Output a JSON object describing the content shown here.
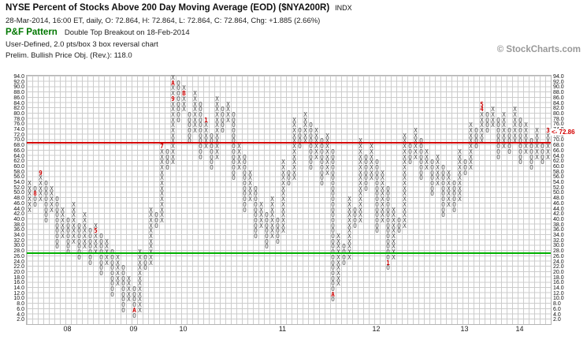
{
  "header": {
    "title": "NYSE Percent of Stocks Above 200 Day Moving Average (EOD) ($NYA200R)",
    "exchange": "INDX",
    "quote_line": "28-Mar-2014, 16:00 ET, daily, O: 72.864, H: 72.864, L: 72.864, C: 72.864, Chg: +1.885 (2.66%)",
    "pattern_label": "P&F Pattern",
    "pattern_value": "Double Top Breakout on 18-Feb-2014",
    "settings_line": "User-Defined, 2.0 pts/box 3 box reversal chart",
    "objective_line": "Prelim. Bullish Price Obj. (Rev.): 118.0",
    "watermark": "© StockCharts.com"
  },
  "colors": {
    "xo_glyph": "#4d4d4d",
    "month_marker": "#cc0000",
    "resistance_line": "#d40000",
    "support_line": "#00b000",
    "pattern_green": "#007700",
    "grid": "#cccccc"
  },
  "chart_data": {
    "type": "point-and-figure",
    "title": "NYSE Percent of Stocks Above 200 Day Moving Average (EOD) ($NYA200R)",
    "box_size": 2.0,
    "reversal": 3,
    "y_min": 2.0,
    "y_max": 94.0,
    "grid": true,
    "last_price": 72.86,
    "last_price_label": "<- 72.86",
    "resistance_line": {
      "price": 69,
      "color": "#d40000"
    },
    "support_line": {
      "price": 27,
      "color": "#00b000"
    },
    "y_ticks": [
      94,
      92,
      90,
      88,
      86,
      84,
      82,
      80,
      78,
      76,
      74,
      72,
      70,
      68,
      66,
      64,
      62,
      60,
      58,
      56,
      54,
      52,
      50,
      48,
      46,
      44,
      42,
      40,
      38,
      36,
      34,
      32,
      30,
      28,
      26,
      24,
      22,
      20,
      18,
      16,
      14,
      12,
      10,
      8,
      6,
      4,
      2
    ],
    "year_labels": [
      {
        "label": "08",
        "col": 7
      },
      {
        "label": "09",
        "col": 19
      },
      {
        "label": "10",
        "col": 28
      },
      {
        "label": "11",
        "col": 46
      },
      {
        "label": "12",
        "col": 63
      },
      {
        "label": "13",
        "col": 79
      },
      {
        "label": "14",
        "col": 89
      }
    ],
    "columns": [
      {
        "t": "X",
        "lo": 44,
        "hi": 54
      },
      {
        "t": "O",
        "lo": 46,
        "hi": 52,
        "m": [
          [
            50,
            "8"
          ]
        ]
      },
      {
        "t": "X",
        "lo": 48,
        "hi": 58,
        "m": [
          [
            58,
            "9"
          ]
        ]
      },
      {
        "t": "O",
        "lo": 40,
        "hi": 54
      },
      {
        "t": "X",
        "lo": 44,
        "hi": 52
      },
      {
        "t": "O",
        "lo": 30,
        "hi": 48
      },
      {
        "t": "X",
        "lo": 34,
        "hi": 44
      },
      {
        "t": "O",
        "lo": 28,
        "hi": 40
      },
      {
        "t": "X",
        "lo": 32,
        "hi": 46
      },
      {
        "t": "O",
        "lo": 26,
        "hi": 38
      },
      {
        "t": "X",
        "lo": 30,
        "hi": 42
      },
      {
        "t": "O",
        "lo": 24,
        "hi": 36
      },
      {
        "t": "X",
        "lo": 28,
        "hi": 38,
        "m": [
          [
            36,
            "5"
          ]
        ]
      },
      {
        "t": "O",
        "lo": 20,
        "hi": 34
      },
      {
        "t": "X",
        "lo": 24,
        "hi": 32
      },
      {
        "t": "O",
        "lo": 12,
        "hi": 28
      },
      {
        "t": "X",
        "lo": 16,
        "hi": 26
      },
      {
        "t": "O",
        "lo": 6,
        "hi": 22
      },
      {
        "t": "X",
        "lo": 10,
        "hi": 18
      },
      {
        "t": "O",
        "lo": 4,
        "hi": 14,
        "m": [
          [
            6,
            "A"
          ]
        ]
      },
      {
        "t": "X",
        "lo": 6,
        "hi": 28
      },
      {
        "t": "O",
        "lo": 22,
        "hi": 26
      },
      {
        "t": "X",
        "lo": 24,
        "hi": 44
      },
      {
        "t": "O",
        "lo": 38,
        "hi": 42
      },
      {
        "t": "X",
        "lo": 40,
        "hi": 68,
        "m": [
          [
            68,
            "7"
          ]
        ]
      },
      {
        "t": "O",
        "lo": 60,
        "hi": 66
      },
      {
        "t": "X",
        "lo": 62,
        "hi": 94,
        "m": [
          [
            86,
            "9"
          ],
          [
            92,
            "A"
          ]
        ]
      },
      {
        "t": "O",
        "lo": 78,
        "hi": 92
      },
      {
        "t": "X",
        "lo": 82,
        "hi": 90,
        "m": [
          [
            88,
            "B"
          ]
        ]
      },
      {
        "t": "O",
        "lo": 70,
        "hi": 80
      },
      {
        "t": "X",
        "lo": 74,
        "hi": 88
      },
      {
        "t": "O",
        "lo": 64,
        "hi": 84
      },
      {
        "t": "X",
        "lo": 68,
        "hi": 78,
        "m": [
          [
            78,
            "1"
          ]
        ]
      },
      {
        "t": "O",
        "lo": 60,
        "hi": 72
      },
      {
        "t": "X",
        "lo": 64,
        "hi": 86
      },
      {
        "t": "O",
        "lo": 74,
        "hi": 82
      },
      {
        "t": "X",
        "lo": 78,
        "hi": 84
      },
      {
        "t": "O",
        "lo": 56,
        "hi": 80
      },
      {
        "t": "X",
        "lo": 60,
        "hi": 68
      },
      {
        "t": "O",
        "lo": 44,
        "hi": 64
      },
      {
        "t": "X",
        "lo": 48,
        "hi": 58
      },
      {
        "t": "O",
        "lo": 34,
        "hi": 52
      },
      {
        "t": "X",
        "lo": 38,
        "hi": 46
      },
      {
        "t": "O",
        "lo": 30,
        "hi": 42
      },
      {
        "t": "X",
        "lo": 34,
        "hi": 48
      },
      {
        "t": "O",
        "lo": 32,
        "hi": 40
      },
      {
        "t": "X",
        "lo": 36,
        "hi": 62
      },
      {
        "t": "O",
        "lo": 54,
        "hi": 58
      },
      {
        "t": "X",
        "lo": 56,
        "hi": 78
      },
      {
        "t": "O",
        "lo": 68,
        "hi": 74
      },
      {
        "t": "X",
        "lo": 70,
        "hi": 80
      },
      {
        "t": "O",
        "lo": 60,
        "hi": 76
      },
      {
        "t": "X",
        "lo": 64,
        "hi": 74
      },
      {
        "t": "O",
        "lo": 54,
        "hi": 70
      },
      {
        "t": "X",
        "lo": 58,
        "hi": 72
      },
      {
        "t": "O",
        "lo": 10,
        "hi": 66,
        "m": [
          [
            12,
            "A"
          ]
        ]
      },
      {
        "t": "X",
        "lo": 16,
        "hi": 34
      },
      {
        "t": "O",
        "lo": 24,
        "hi": 30
      },
      {
        "t": "X",
        "lo": 26,
        "hi": 48
      },
      {
        "t": "O",
        "lo": 38,
        "hi": 44
      },
      {
        "t": "X",
        "lo": 40,
        "hi": 70
      },
      {
        "t": "O",
        "lo": 52,
        "hi": 64
      },
      {
        "t": "X",
        "lo": 56,
        "hi": 68
      },
      {
        "t": "O",
        "lo": 36,
        "hi": 62
      },
      {
        "t": "X",
        "lo": 40,
        "hi": 58
      },
      {
        "t": "O",
        "lo": 22,
        "hi": 52,
        "m": [
          [
            24,
            "1"
          ]
        ]
      },
      {
        "t": "X",
        "lo": 26,
        "hi": 44
      },
      {
        "t": "O",
        "lo": 36,
        "hi": 40
      },
      {
        "t": "X",
        "lo": 38,
        "hi": 72
      },
      {
        "t": "O",
        "lo": 62,
        "hi": 68
      },
      {
        "t": "X",
        "lo": 64,
        "hi": 74
      },
      {
        "t": "O",
        "lo": 56,
        "hi": 70
      },
      {
        "t": "X",
        "lo": 60,
        "hi": 66
      },
      {
        "t": "O",
        "lo": 50,
        "hi": 62
      },
      {
        "t": "X",
        "lo": 54,
        "hi": 64
      },
      {
        "t": "O",
        "lo": 42,
        "hi": 60
      },
      {
        "t": "X",
        "lo": 46,
        "hi": 58
      },
      {
        "t": "O",
        "lo": 44,
        "hi": 54
      },
      {
        "t": "X",
        "lo": 48,
        "hi": 66
      },
      {
        "t": "O",
        "lo": 58,
        "hi": 62
      },
      {
        "t": "X",
        "lo": 60,
        "hi": 76
      },
      {
        "t": "O",
        "lo": 68,
        "hi": 74
      },
      {
        "t": "X",
        "lo": 70,
        "hi": 84,
        "m": [
          [
            84,
            "5"
          ],
          [
            82,
            "4"
          ]
        ]
      },
      {
        "t": "O",
        "lo": 74,
        "hi": 80
      },
      {
        "t": "X",
        "lo": 76,
        "hi": 82
      },
      {
        "t": "O",
        "lo": 64,
        "hi": 78
      },
      {
        "t": "X",
        "lo": 68,
        "hi": 80
      },
      {
        "t": "O",
        "lo": 66,
        "hi": 74
      },
      {
        "t": "X",
        "lo": 70,
        "hi": 82
      },
      {
        "t": "O",
        "lo": 62,
        "hi": 78
      },
      {
        "t": "X",
        "lo": 66,
        "hi": 76
      },
      {
        "t": "O",
        "lo": 60,
        "hi": 70
      },
      {
        "t": "X",
        "lo": 64,
        "hi": 74
      },
      {
        "t": "O",
        "lo": 62,
        "hi": 68
      },
      {
        "t": "X",
        "lo": 64,
        "hi": 74,
        "m": [
          [
            74,
            "3"
          ]
        ]
      }
    ]
  }
}
